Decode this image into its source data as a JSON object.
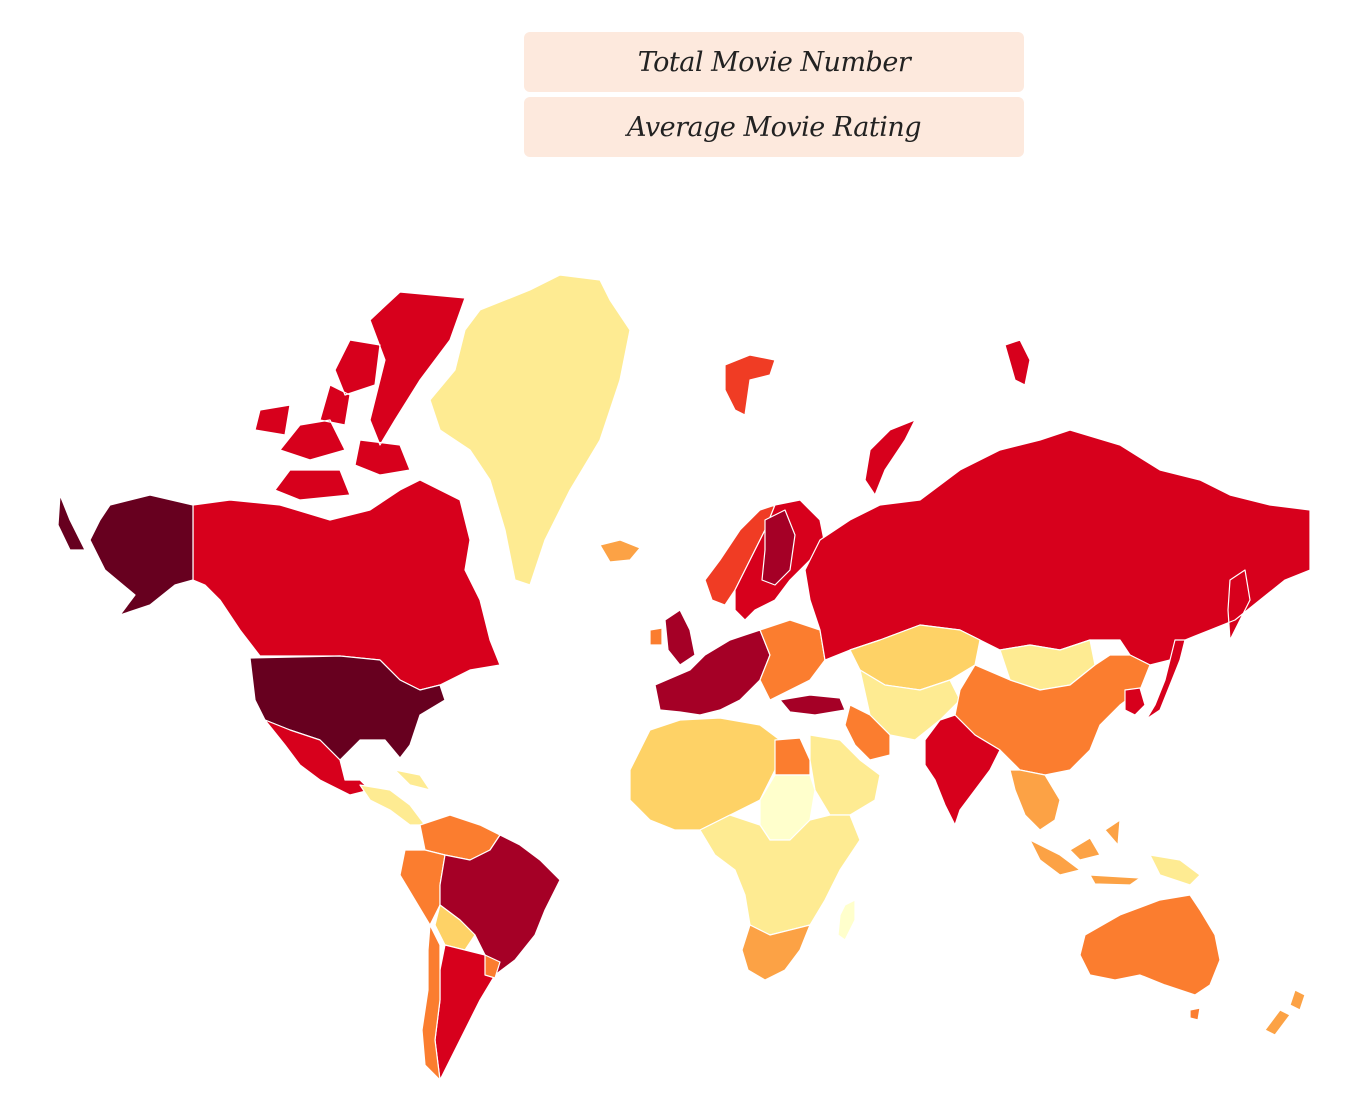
{
  "buttons": {
    "total_label": "Total Movie Number",
    "average_label": "Average Movie Rating"
  },
  "colors": {
    "darkest": "#67001f",
    "dark_red": "#a50026",
    "red": "#d7001c",
    "red_orange": "#f03c24",
    "orange": "#fb7d2f",
    "light_orange": "#fca245",
    "amber": "#fed266",
    "pale_yellow": "#feeb92",
    "cream": "#ffffcc"
  },
  "regions": [
    {
      "name": "united-states",
      "shade": "darkest"
    },
    {
      "name": "alaska",
      "shade": "darkest"
    },
    {
      "name": "canada",
      "shade": "red"
    },
    {
      "name": "canadian-arctic-islands",
      "shade": "red"
    },
    {
      "name": "greenland",
      "shade": "pale_yellow"
    },
    {
      "name": "iceland",
      "shade": "light_orange"
    },
    {
      "name": "mexico",
      "shade": "red"
    },
    {
      "name": "central-america",
      "shade": "pale_yellow"
    },
    {
      "name": "colombia-venezuela",
      "shade": "orange"
    },
    {
      "name": "brazil",
      "shade": "dark_red"
    },
    {
      "name": "peru",
      "shade": "orange"
    },
    {
      "name": "bolivia",
      "shade": "amber"
    },
    {
      "name": "argentina",
      "shade": "red"
    },
    {
      "name": "chile",
      "shade": "orange"
    },
    {
      "name": "uruguay",
      "shade": "orange"
    },
    {
      "name": "russia",
      "shade": "red"
    },
    {
      "name": "scandinavia",
      "shade": "red"
    },
    {
      "name": "norway-coast",
      "shade": "red_orange"
    },
    {
      "name": "finland",
      "shade": "dark_red"
    },
    {
      "name": "svalbard",
      "shade": "red_orange"
    },
    {
      "name": "uk",
      "shade": "dark_red"
    },
    {
      "name": "ireland",
      "shade": "orange"
    },
    {
      "name": "western-europe",
      "shade": "dark_red"
    },
    {
      "name": "eastern-europe",
      "shade": "orange"
    },
    {
      "name": "turkey",
      "shade": "dark_red"
    },
    {
      "name": "kazakhstan",
      "shade": "amber"
    },
    {
      "name": "mongolia",
      "shade": "pale_yellow"
    },
    {
      "name": "china",
      "shade": "orange"
    },
    {
      "name": "central-asia",
      "shade": "pale_yellow"
    },
    {
      "name": "iran",
      "shade": "orange"
    },
    {
      "name": "india",
      "shade": "red"
    },
    {
      "name": "southeast-asia",
      "shade": "light_orange"
    },
    {
      "name": "japan",
      "shade": "red"
    },
    {
      "name": "korea",
      "shade": "red"
    },
    {
      "name": "indonesia",
      "shade": "light_orange"
    },
    {
      "name": "papua",
      "shade": "pale_yellow"
    },
    {
      "name": "australia",
      "shade": "orange"
    },
    {
      "name": "new-zealand",
      "shade": "light_orange"
    },
    {
      "name": "north-africa",
      "shade": "amber"
    },
    {
      "name": "egypt",
      "shade": "orange"
    },
    {
      "name": "sudan-sahel",
      "shade": "cream"
    },
    {
      "name": "arabia",
      "shade": "pale_yellow"
    },
    {
      "name": "central-africa",
      "shade": "pale_yellow"
    },
    {
      "name": "southern-africa",
      "shade": "light_orange"
    },
    {
      "name": "madagascar",
      "shade": "cream"
    }
  ]
}
